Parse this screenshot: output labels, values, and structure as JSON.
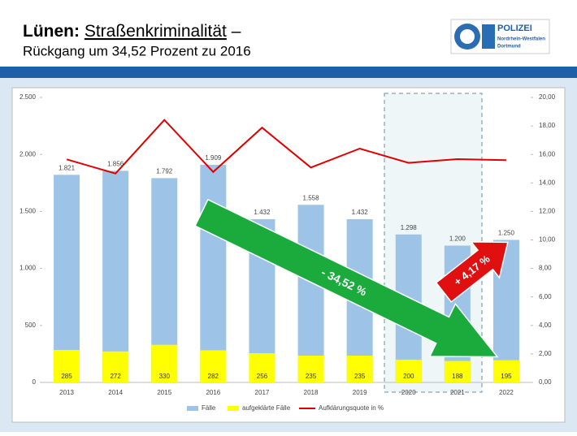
{
  "header": {
    "title_place": "Lünen:",
    "title_topic": "Straßenkriminalität",
    "title_dash": "–",
    "subtitle": "Rückgang um 34,52 Prozent zu 2016"
  },
  "logo": {
    "name": "POLIZEI",
    "region": "Nordrhein-Westfalen",
    "city": "Dortmund"
  },
  "chart_data": {
    "type": "bar",
    "categories": [
      "2013",
      "2014",
      "2015",
      "2016",
      "2017",
      "2018",
      "2019",
      "2020",
      "2021",
      "2022"
    ],
    "series": [
      {
        "name": "Fälle",
        "color": "#9dc3e6",
        "values": [
          1821,
          1856,
          1792,
          1909,
          1432,
          1558,
          1432,
          1298,
          1200,
          1250
        ],
        "value_labels": [
          "1.821",
          "1.856",
          "1.792",
          "1.909",
          "1.432",
          "1.558",
          "1.432",
          "1.298",
          "1.200",
          "1.250"
        ]
      },
      {
        "name": "aufgeklärte Fälle",
        "color": "#ffff00",
        "values": [
          285,
          272,
          330,
          282,
          256,
          235,
          235,
          200,
          188,
          195
        ]
      },
      {
        "name": "Aufklärungsquote in %",
        "type": "line",
        "axis": "y2",
        "color": "#e00000",
        "values": [
          15.65,
          14.66,
          18.42,
          14.77,
          17.88,
          15.08,
          16.41,
          15.41,
          15.67,
          15.6
        ]
      }
    ],
    "ylim": [
      0,
      2500
    ],
    "yticks": [
      0,
      500,
      {
        "value": 1000,
        "label": "1.000"
      },
      {
        "value": 1500,
        "label": "1.500"
      },
      {
        "value": 2000,
        "label": "2.000"
      },
      {
        "value": 2500,
        "label": "2.500"
      }
    ],
    "y2lim": [
      0,
      20
    ],
    "y2ticks": [
      {
        "value": 0,
        "label": "0,00"
      },
      {
        "value": 2,
        "label": "2,00"
      },
      {
        "value": 4,
        "label": "4,00"
      },
      {
        "value": 6,
        "label": "6,00"
      },
      {
        "value": 8,
        "label": "8,00"
      },
      {
        "value": 10,
        "label": "10,00"
      },
      {
        "value": 12,
        "label": "12,00"
      },
      {
        "value": 14,
        "label": "14,00"
      },
      {
        "value": 16,
        "label": "16,00"
      },
      {
        "value": 18,
        "label": "18,00"
      },
      {
        "value": 20,
        "label": "20,00"
      }
    ],
    "annotations": [
      "- 34,52 %",
      "+ 4,17 %"
    ],
    "legend": "bottom"
  }
}
